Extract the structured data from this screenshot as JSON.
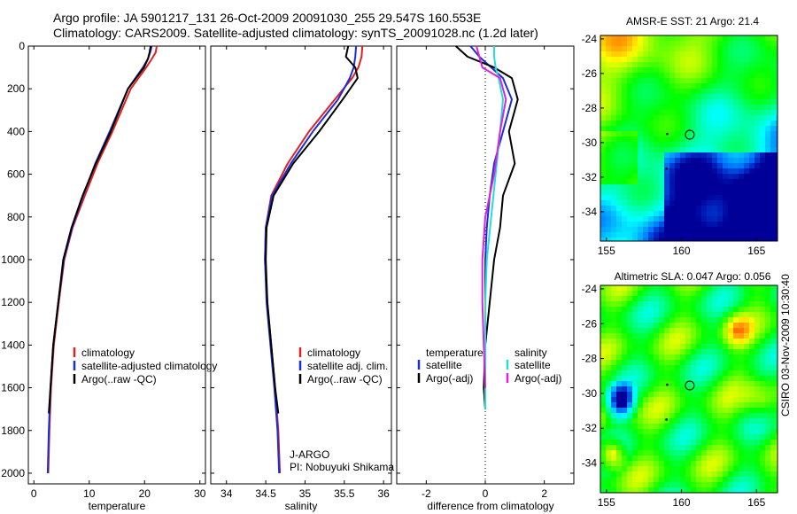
{
  "header": {
    "line1": "Argo profile: JA 5901217_131 26-Oct-2009 20091030_255 29.547S 160.553E",
    "line2": "Climatology: CARS2009. Satellite-adjusted climatology: synTS_20091028.nc (1.2d later)"
  },
  "stamp": "CSIRO 03-Nov-2009 10:30:40",
  "colors": {
    "clim": "#e02020",
    "sat": "#1a2ed8",
    "argo": "#000000",
    "sal_sat": "#22dddd",
    "sal_argo": "#dd22dd"
  },
  "chart_data": [
    {
      "type": "line",
      "name": "temperature-panel",
      "xlabel": "temperature",
      "ylabel": "",
      "xlim": [
        -1,
        31
      ],
      "ylim": [
        2050,
        0
      ],
      "y_reversed": true,
      "xticks": [
        0,
        10,
        20,
        30
      ],
      "yticks": [
        0,
        200,
        400,
        600,
        800,
        1000,
        1200,
        1400,
        1600,
        1800,
        2000
      ],
      "legend": [
        "climatology",
        "satellite-adjusted climatology",
        "Argo(..raw -QC)"
      ],
      "series": [
        {
          "name": "climatology",
          "color": "clim",
          "x": [
            22.2,
            22.0,
            21.3,
            20.3,
            17.5,
            14.2,
            11.5,
            9.2,
            7.0,
            5.5,
            4.5,
            3.6,
            3.1,
            2.8,
            2.6
          ],
          "y": [
            0,
            30,
            60,
            100,
            200,
            400,
            550,
            700,
            850,
            1000,
            1200,
            1400,
            1600,
            1800,
            2000
          ]
        },
        {
          "name": "satellite-adjusted climatology",
          "color": "sat",
          "x": [
            21.3,
            21.0,
            20.6,
            19.7,
            17.0,
            13.7,
            11.1,
            8.9,
            6.9,
            5.4,
            4.4,
            3.5,
            3.0,
            2.7,
            2.5
          ],
          "y": [
            0,
            30,
            60,
            100,
            200,
            400,
            550,
            700,
            850,
            1000,
            1200,
            1400,
            1600,
            1800,
            2000
          ]
        },
        {
          "name": "Argo(..raw -QC)",
          "color": "argo",
          "x": [
            21.1,
            20.9,
            20.6,
            19.9,
            17.0,
            13.9,
            11.2,
            8.8,
            6.8,
            5.3,
            4.4,
            3.5,
            3.0,
            2.7
          ],
          "y": [
            0,
            30,
            60,
            100,
            200,
            400,
            550,
            700,
            850,
            1000,
            1200,
            1400,
            1600,
            1720
          ]
        }
      ]
    },
    {
      "type": "line",
      "name": "salinity-panel",
      "xlabel": "salinity",
      "xlim": [
        33.8,
        36.1
      ],
      "ylim": [
        2050,
        0
      ],
      "y_reversed": true,
      "xticks": [
        34,
        34.5,
        35,
        35.5,
        36
      ],
      "yticks": [
        0,
        200,
        400,
        600,
        800,
        1000,
        1200,
        1400,
        1600,
        1800,
        2000
      ],
      "legend": [
        "climatology",
        "satellite adj. clim.",
        "Argo(..raw -QC)"
      ],
      "annotation": [
        "J-ARGO",
        "PI: Nobuyuki Shikama"
      ],
      "series": [
        {
          "name": "climatology",
          "color": "clim",
          "x": [
            35.73,
            35.72,
            35.68,
            35.6,
            35.38,
            35.05,
            34.78,
            34.57,
            34.5,
            34.49,
            34.52,
            34.57,
            34.62,
            34.66,
            34.68
          ],
          "y": [
            0,
            50,
            100,
            150,
            250,
            400,
            550,
            700,
            850,
            1000,
            1200,
            1400,
            1600,
            1800,
            2000
          ]
        },
        {
          "name": "satellite adj. clim.",
          "color": "sat",
          "x": [
            35.65,
            35.64,
            35.62,
            35.57,
            35.42,
            35.1,
            34.82,
            34.58,
            34.5,
            34.49,
            34.51,
            34.56,
            34.61,
            34.65,
            34.67
          ],
          "y": [
            0,
            50,
            100,
            150,
            250,
            400,
            550,
            700,
            850,
            1000,
            1200,
            1400,
            1600,
            1800,
            2000
          ]
        },
        {
          "name": "Argo(..raw -QC)",
          "color": "argo",
          "x": [
            35.55,
            35.52,
            35.64,
            35.67,
            35.48,
            35.18,
            34.85,
            34.6,
            34.51,
            34.5,
            34.52,
            34.57,
            34.62,
            34.66
          ],
          "y": [
            0,
            50,
            100,
            150,
            250,
            400,
            550,
            700,
            850,
            1000,
            1200,
            1400,
            1600,
            1720
          ]
        }
      ]
    },
    {
      "type": "line",
      "name": "difference-panel",
      "xlabel": "difference from climatology",
      "xlim": [
        -3,
        3
      ],
      "ylim": [
        2050,
        0
      ],
      "y_reversed": true,
      "xticks": [
        -2,
        0,
        2
      ],
      "yticks": [
        0,
        200,
        400,
        600,
        800,
        1000,
        1200,
        1400,
        1600,
        1800,
        2000
      ],
      "legend_left": [
        "temperature",
        "satellite",
        "Argo(-adj)"
      ],
      "legend_right": [
        "salinity",
        "satellite",
        "Argo(-adj)"
      ],
      "series": [
        {
          "name": "temperature satellite",
          "color": "sat",
          "x": [
            -0.5,
            -0.2,
            0.2,
            0.6,
            0.9,
            0.6,
            0.3,
            0.15,
            0.05,
            0.0,
            0.0,
            0.0,
            0.0,
            0.0
          ],
          "y": [
            0,
            50,
            100,
            150,
            250,
            400,
            550,
            700,
            850,
            1000,
            1200,
            1400,
            1600,
            1700
          ]
        },
        {
          "name": "temperature Argo(-adj)",
          "color": "argo",
          "x": [
            -1.0,
            -0.6,
            0.3,
            0.9,
            1.1,
            0.8,
            1.0,
            0.6,
            0.5,
            0.3,
            0.15,
            0.0,
            -0.05,
            0.0
          ],
          "y": [
            0,
            50,
            100,
            150,
            250,
            400,
            550,
            700,
            850,
            1000,
            1200,
            1400,
            1600,
            1700
          ]
        },
        {
          "name": "salinity satellite",
          "color": "sal_sat",
          "x": [
            0.3,
            0.3,
            0.35,
            0.45,
            0.6,
            0.5,
            0.35,
            0.2,
            0.05,
            0.0,
            0.0,
            0.0,
            0.0
          ],
          "y": [
            0,
            50,
            100,
            150,
            250,
            400,
            600,
            800,
            1000,
            1200,
            1400,
            1600,
            1700
          ]
        },
        {
          "name": "salinity Argo(-adj)",
          "color": "sal_argo",
          "x": [
            -0.3,
            -0.2,
            -0.1,
            0.5,
            0.7,
            0.5,
            0.3,
            0.0,
            -0.1,
            -0.1,
            -0.05,
            0.0
          ],
          "y": [
            0,
            50,
            100,
            150,
            250,
            400,
            600,
            800,
            1000,
            1200,
            1400,
            1600
          ]
        }
      ]
    },
    {
      "type": "heatmap",
      "name": "sst-map",
      "title": "AMSR-E SST: 21 Argo: 21.4",
      "xlim": [
        154.6,
        166.4
      ],
      "ylim": [
        -35.7,
        -23.8
      ],
      "xticks": [
        155,
        160,
        165
      ],
      "yticks": [
        -24,
        -26,
        -28,
        -30,
        -32,
        -34
      ],
      "markers": [
        {
          "lon": 160.553,
          "lat": -29.547,
          "kind": "circle"
        }
      ]
    },
    {
      "type": "heatmap",
      "name": "sla-map",
      "title": "Altimetric SLA: 0.047 Argo: 0.056",
      "xlim": [
        154.6,
        166.4
      ],
      "ylim": [
        -35.7,
        -23.8
      ],
      "xticks": [
        155,
        160,
        165
      ],
      "yticks": [
        -24,
        -26,
        -28,
        -30,
        -32,
        -34
      ],
      "markers": [
        {
          "lon": 160.553,
          "lat": -29.547,
          "kind": "circle"
        }
      ]
    }
  ]
}
